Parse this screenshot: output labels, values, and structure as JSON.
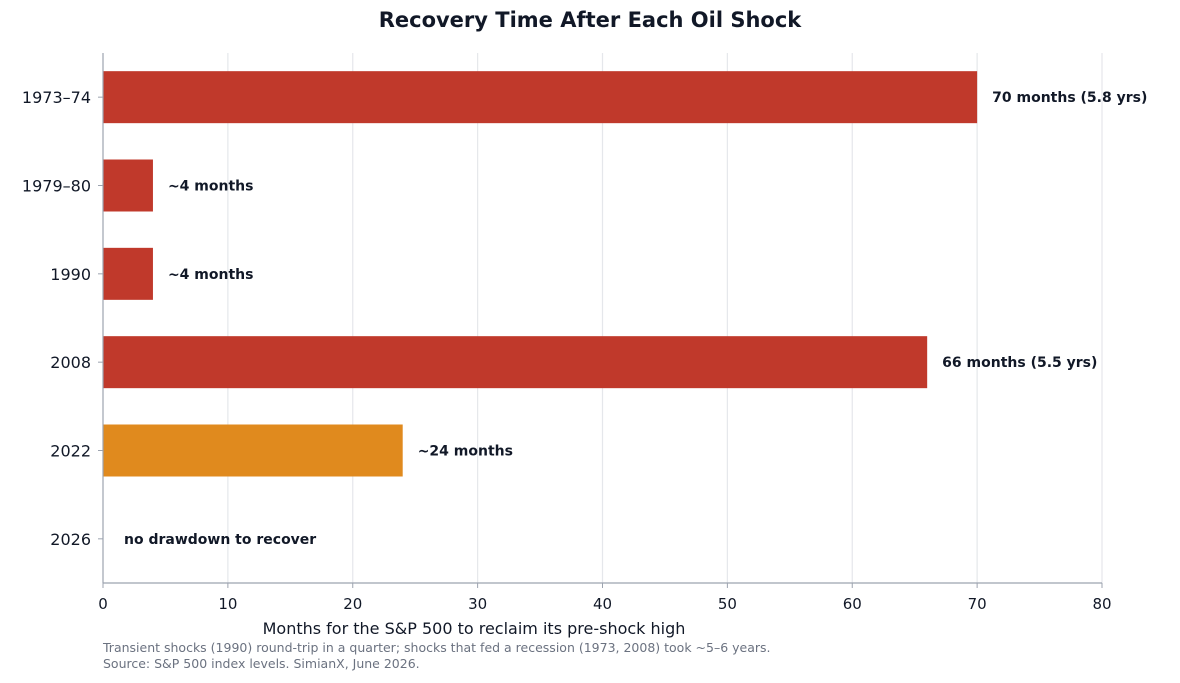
{
  "chart_data": {
    "type": "bar",
    "orientation": "horizontal",
    "title": "Recovery Time After Each Oil Shock",
    "xlabel": "Months for the S&P 500 to reclaim its pre-shock high",
    "ylabel": "",
    "xlim": [
      0,
      80
    ],
    "xticks": [
      0,
      10,
      20,
      30,
      40,
      50,
      60,
      70,
      80
    ],
    "grid": "vertical",
    "categories": [
      "1973–74",
      "1979–80",
      "1990",
      "2008",
      "2022",
      "2026"
    ],
    "values": [
      70,
      4,
      4,
      66,
      24,
      0
    ],
    "bar_labels": [
      "70 months (5.8 yrs)",
      "~4 months",
      "~4 months",
      "66 months (5.5 yrs)",
      "~24 months",
      "no drawdown to recover"
    ],
    "bar_colors": [
      "#c0392b",
      "#c0392b",
      "#c0392b",
      "#c0392b",
      "#e08a1e",
      "#c0392b"
    ]
  },
  "footnotes": [
    "Transient shocks (1990) round-trip in a quarter; shocks that fed a recession (1973, 2008) took ~5–6 years.",
    "Source: S&P 500 index levels. SimianX, June 2026."
  ]
}
